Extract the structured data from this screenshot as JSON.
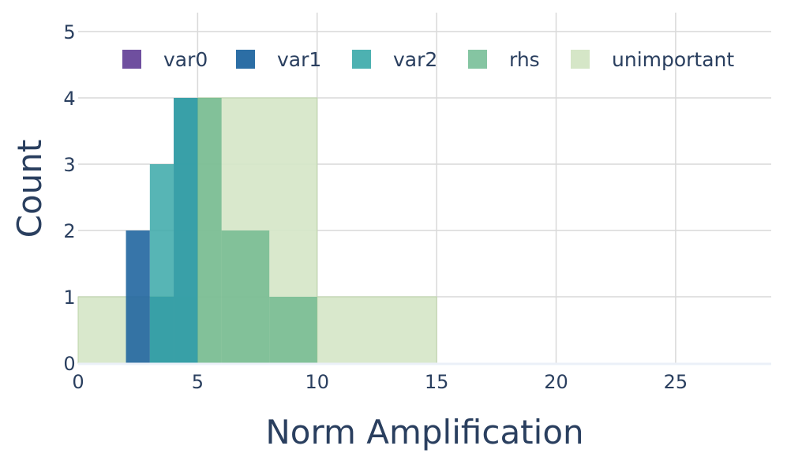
{
  "chart_data": {
    "type": "bar",
    "xlabel": "Norm Amplification",
    "ylabel": "Count",
    "xlim": [
      0,
      29
    ],
    "ylim": [
      0,
      5
    ],
    "x_ticks": [
      0,
      5,
      10,
      15,
      20,
      25
    ],
    "y_ticks": [
      0,
      1,
      2,
      3,
      4,
      5
    ],
    "grid": true,
    "legend_position": "top, horizontal",
    "series": [
      {
        "name": "var0",
        "color": "#6f4f9f",
        "opacity": 1.0,
        "bins": []
      },
      {
        "name": "var1",
        "color": "#2166a0",
        "opacity": 0.9,
        "bins": [
          {
            "x0": 2,
            "x1": 3,
            "count": 2
          },
          {
            "x0": 3,
            "x1": 4,
            "count": 1
          },
          {
            "x0": 4,
            "x1": 5,
            "count": 4
          }
        ]
      },
      {
        "name": "var2",
        "color": "#3aa8a8",
        "opacity": 0.85,
        "bins": [
          {
            "x0": 3,
            "x1": 4,
            "count": 3
          },
          {
            "x0": 4,
            "x1": 5,
            "count": 4
          }
        ]
      },
      {
        "name": "rhs",
        "color": "#5cb183",
        "opacity": 0.7,
        "bins": [
          {
            "x0": 5,
            "x1": 6,
            "count": 4
          },
          {
            "x0": 6,
            "x1": 8,
            "count": 2
          },
          {
            "x0": 8,
            "x1": 10,
            "count": 1
          }
        ]
      },
      {
        "name": "unimportant",
        "color": "#d5e6c7",
        "opacity": 0.9,
        "bins": [
          {
            "x0": 0,
            "x1": 5,
            "count": 1
          },
          {
            "x0": 5,
            "x1": 10,
            "count": 4
          },
          {
            "x0": 10,
            "x1": 15,
            "count": 1
          }
        ]
      }
    ]
  }
}
